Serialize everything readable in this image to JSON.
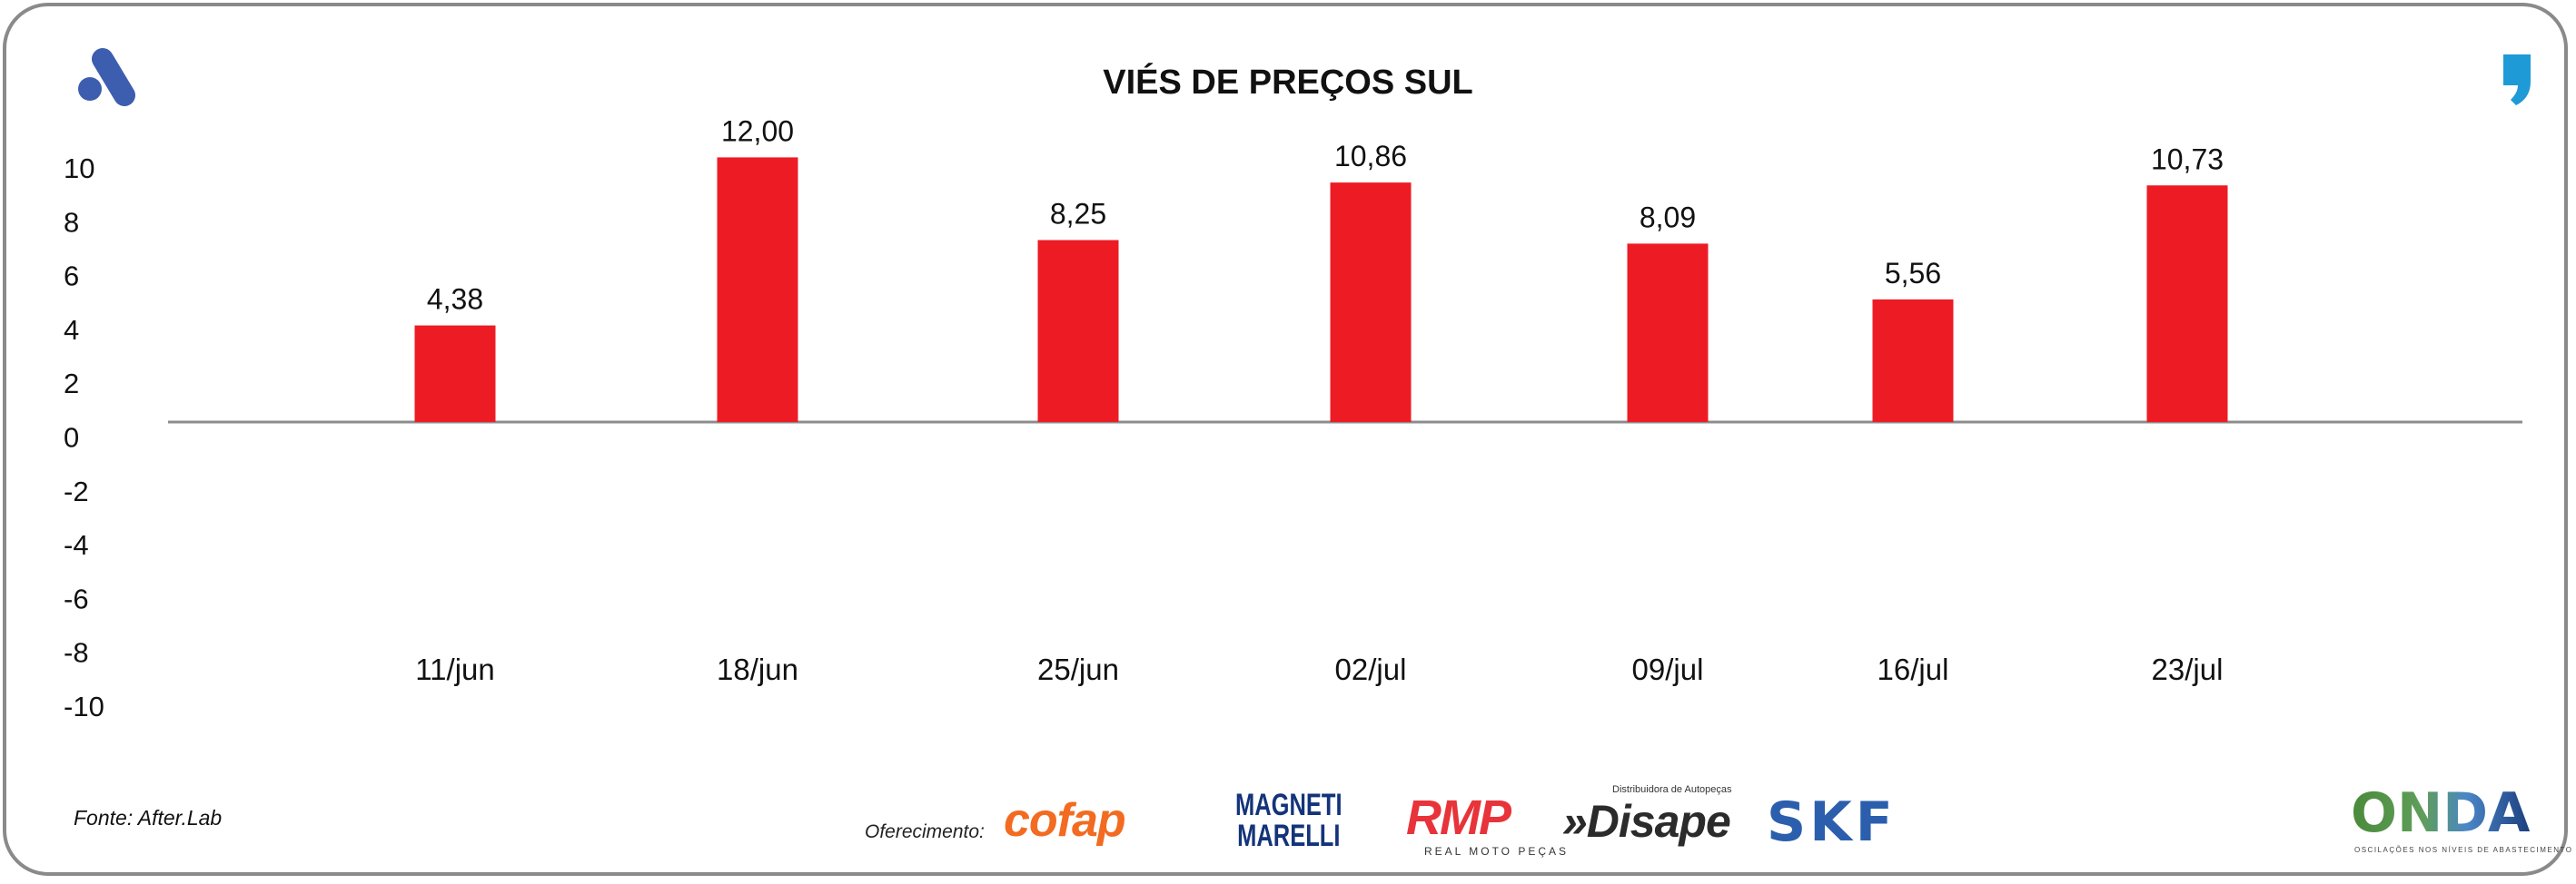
{
  "chart_data": {
    "type": "bar",
    "title": "VIÉS DE PREÇOS SUL",
    "categories": [
      "11/jun",
      "18/jun",
      "25/jun",
      "02/jul",
      "09/jul",
      "16/jul",
      "23/jul"
    ],
    "values": [
      4.38,
      12.0,
      8.25,
      10.86,
      8.09,
      5.56,
      10.73
    ],
    "value_labels": [
      "4,38",
      "12,00",
      "8,25",
      "10,86",
      "8,09",
      "5,56",
      "10,73"
    ],
    "y_ticks": [
      "10",
      "8",
      "6",
      "4",
      "2",
      "0",
      "-2",
      "-4",
      "-6",
      "-8",
      "-10"
    ],
    "ylim": [
      -10,
      10
    ],
    "xlabel": "",
    "ylabel": "",
    "bar_color": "#ed1c24",
    "grid": false
  },
  "footer": {
    "source": "Fonte: After.Lab",
    "sponsor_label": "Oferecimento:",
    "sponsors": [
      "cofap",
      "MAGNETI",
      "MARELLI",
      "RMP",
      "REAL MOTO PEÇAS",
      "»Disape",
      "Distribuidora de Autopeças",
      "SKF"
    ],
    "onda": "ONDA",
    "onda_sub": "OSCILAÇÕES NOS NÍVEIS DE ABASTECIMENTO E PREÇO"
  },
  "colors": {
    "brand_blue": "#3d5daf",
    "quote_blue": "#1e9ad6"
  }
}
